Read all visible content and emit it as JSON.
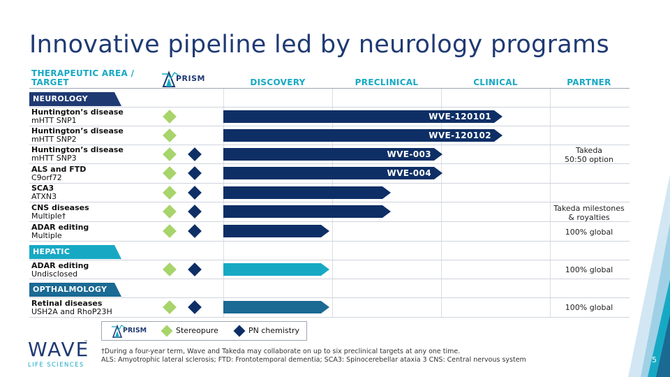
{
  "title": "Innovative pipeline led by neurology programs",
  "headers": {
    "area": "THERAPEUTIC AREA /",
    "target": "TARGET",
    "prism": "PRISM",
    "discovery": "DISCOVERY",
    "preclinical": "PRECLINICAL",
    "clinical": "CLINICAL",
    "partner": "PARTNER"
  },
  "sections": {
    "neurology": "NEUROLOGY",
    "hepatic": "HEPATIC",
    "opthalmology": "OPTHALMOLOGY"
  },
  "rows": [
    {
      "disease": "Huntington’s disease",
      "target": "mHTT SNP1",
      "program": "WVE-120101",
      "progress_stage": "clinical",
      "bar_color": "#0e2f66",
      "stereopure": true,
      "pn_chemistry": false
    },
    {
      "disease": "Huntington’s disease",
      "target": "mHTT SNP2",
      "program": "WVE-120102",
      "progress_stage": "clinical",
      "bar_color": "#0e2f66",
      "stereopure": true,
      "pn_chemistry": false
    },
    {
      "disease": "Huntington’s disease",
      "target": "mHTT SNP3",
      "program": "WVE-003",
      "progress_stage": "preclinical-complete",
      "bar_color": "#0e2f66",
      "stereopure": true,
      "pn_chemistry": true
    },
    {
      "disease": "ALS and FTD",
      "target": "C9orf72",
      "program": "WVE-004",
      "progress_stage": "preclinical-complete",
      "bar_color": "#0e2f66",
      "stereopure": true,
      "pn_chemistry": true
    },
    {
      "disease": "SCA3",
      "target": "ATXN3",
      "program": "",
      "progress_stage": "preclinical",
      "bar_color": "#0e2f66",
      "stereopure": true,
      "pn_chemistry": true
    },
    {
      "disease": "CNS diseases",
      "target": "Multiple†",
      "program": "",
      "progress_stage": "preclinical",
      "bar_color": "#0e2f66",
      "stereopure": true,
      "pn_chemistry": true
    },
    {
      "disease": "ADAR editing",
      "target": "Multiple",
      "program": "",
      "progress_stage": "discovery",
      "bar_color": "#0e2f66",
      "stereopure": true,
      "pn_chemistry": true
    },
    {
      "disease": "ADAR editing",
      "target": "Undisclosed",
      "program": "",
      "progress_stage": "discovery",
      "bar_color": "#17a9c4",
      "stereopure": true,
      "pn_chemistry": true
    },
    {
      "disease": "Retinal diseases",
      "target": "USH2A and RhoP23H",
      "program": "",
      "progress_stage": "discovery",
      "bar_color": "#1a6a94",
      "stereopure": true,
      "pn_chemistry": true
    }
  ],
  "partners": {
    "takeda_1": "Takeda",
    "takeda_2": "50:50 option",
    "milestones_1": "Takeda milestones",
    "milestones_2": "& royalties",
    "global_adar": "100% global",
    "global_hepatic": "100% global",
    "global_retinal": "100% global"
  },
  "legend": {
    "prism": "PRISM",
    "stereopure": "Stereopure",
    "pn": "PN chemistry"
  },
  "footnote": {
    "line1": "†During a four-year term, Wave and Takeda may collaborate on up to six preclinical targets at any one time.",
    "line2": "ALS: Amyotrophic lateral sclerosis; FTD: Frontotemporal dementia; SCA3: Spinocerebellar ataxia 3 CNS: Central nervous system"
  },
  "logo": {
    "wave": "WAVE",
    "tm": "™",
    "sub": "LIFE SCIENCES"
  },
  "page_number": "5",
  "colors": {
    "navy": "#0e2f66",
    "teal": "#17a9c4",
    "green": "#a7d46b"
  }
}
